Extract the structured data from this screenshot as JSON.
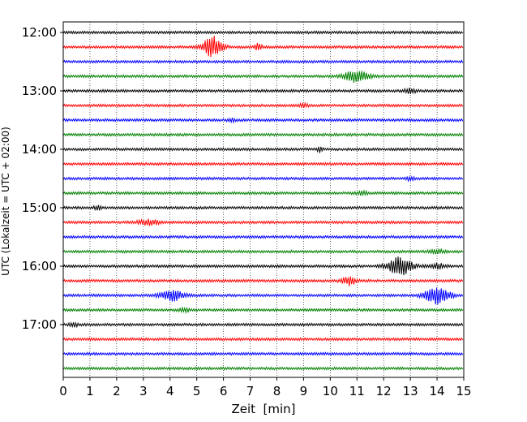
{
  "chart_data": {
    "type": "line",
    "title": "",
    "xlabel": "Zeit  [min]",
    "ylabel": "UTC (Lokalzeit = UTC + 02:00)",
    "xlim": [
      0,
      15
    ],
    "x_ticks": [
      "0",
      "1",
      "2",
      "3",
      "4",
      "5",
      "6",
      "7",
      "8",
      "9",
      "10",
      "11",
      "12",
      "13",
      "14",
      "15"
    ],
    "y_tick_labels": [
      "12:00",
      "13:00",
      "14:00",
      "15:00",
      "16:00",
      "17:00"
    ],
    "grid": "vertical dotted at each minute",
    "trace_interval_minutes": 15,
    "trace_colors": [
      "#000000",
      "#ff0000",
      "#0000ff",
      "#008000"
    ],
    "traces": [
      {
        "start": "12:00",
        "color": "#000000",
        "events": []
      },
      {
        "start": "12:15",
        "color": "#ff0000",
        "events": [
          {
            "t": 5.6,
            "amp": 13,
            "w": 0.35
          },
          {
            "t": 7.3,
            "amp": 5,
            "w": 0.12
          }
        ]
      },
      {
        "start": "12:30",
        "color": "#0000ff",
        "events": []
      },
      {
        "start": "12:45",
        "color": "#008000",
        "events": [
          {
            "t": 11.0,
            "amp": 7,
            "w": 0.45
          }
        ]
      },
      {
        "start": "13:00",
        "color": "#000000",
        "events": [
          {
            "t": 13.0,
            "amp": 3,
            "w": 0.2
          }
        ]
      },
      {
        "start": "13:15",
        "color": "#ff0000",
        "events": [
          {
            "t": 9.0,
            "amp": 2,
            "w": 0.15
          }
        ]
      },
      {
        "start": "13:30",
        "color": "#0000ff",
        "events": [
          {
            "t": 6.3,
            "amp": 2,
            "w": 0.15
          }
        ]
      },
      {
        "start": "13:45",
        "color": "#008000",
        "events": []
      },
      {
        "start": "14:00",
        "color": "#000000",
        "events": [
          {
            "t": 9.6,
            "amp": 3,
            "w": 0.1
          }
        ]
      },
      {
        "start": "14:15",
        "color": "#ff0000",
        "events": []
      },
      {
        "start": "14:30",
        "color": "#0000ff",
        "events": [
          {
            "t": 13.0,
            "amp": 2,
            "w": 0.15
          }
        ]
      },
      {
        "start": "14:45",
        "color": "#008000",
        "events": [
          {
            "t": 11.2,
            "amp": 2,
            "w": 0.2
          }
        ]
      },
      {
        "start": "15:00",
        "color": "#000000",
        "events": [
          {
            "t": 1.3,
            "amp": 2,
            "w": 0.15
          }
        ]
      },
      {
        "start": "15:15",
        "color": "#ff0000",
        "events": [
          {
            "t": 3.2,
            "amp": 3,
            "w": 0.4
          }
        ]
      },
      {
        "start": "15:30",
        "color": "#0000ff",
        "events": []
      },
      {
        "start": "15:45",
        "color": "#008000",
        "events": [
          {
            "t": 14.0,
            "amp": 2,
            "w": 0.3
          }
        ]
      },
      {
        "start": "16:00",
        "color": "#000000",
        "events": [
          {
            "t": 12.6,
            "amp": 11,
            "w": 0.45
          },
          {
            "t": 14.0,
            "amp": 3,
            "w": 0.3
          }
        ]
      },
      {
        "start": "16:15",
        "color": "#ff0000",
        "events": [
          {
            "t": 10.7,
            "amp": 5,
            "w": 0.25
          }
        ]
      },
      {
        "start": "16:30",
        "color": "#0000ff",
        "events": [
          {
            "t": 4.1,
            "amp": 6,
            "w": 0.45
          },
          {
            "t": 14.0,
            "amp": 10,
            "w": 0.45
          }
        ]
      },
      {
        "start": "16:45",
        "color": "#008000",
        "events": [
          {
            "t": 4.5,
            "amp": 2,
            "w": 0.2
          }
        ]
      },
      {
        "start": "17:00",
        "color": "#000000",
        "events": [
          {
            "t": 0.4,
            "amp": 2,
            "w": 0.15
          }
        ]
      },
      {
        "start": "17:15",
        "color": "#ff0000",
        "events": []
      },
      {
        "start": "17:30",
        "color": "#0000ff",
        "events": []
      },
      {
        "start": "17:45",
        "color": "#008000",
        "events": []
      }
    ]
  }
}
